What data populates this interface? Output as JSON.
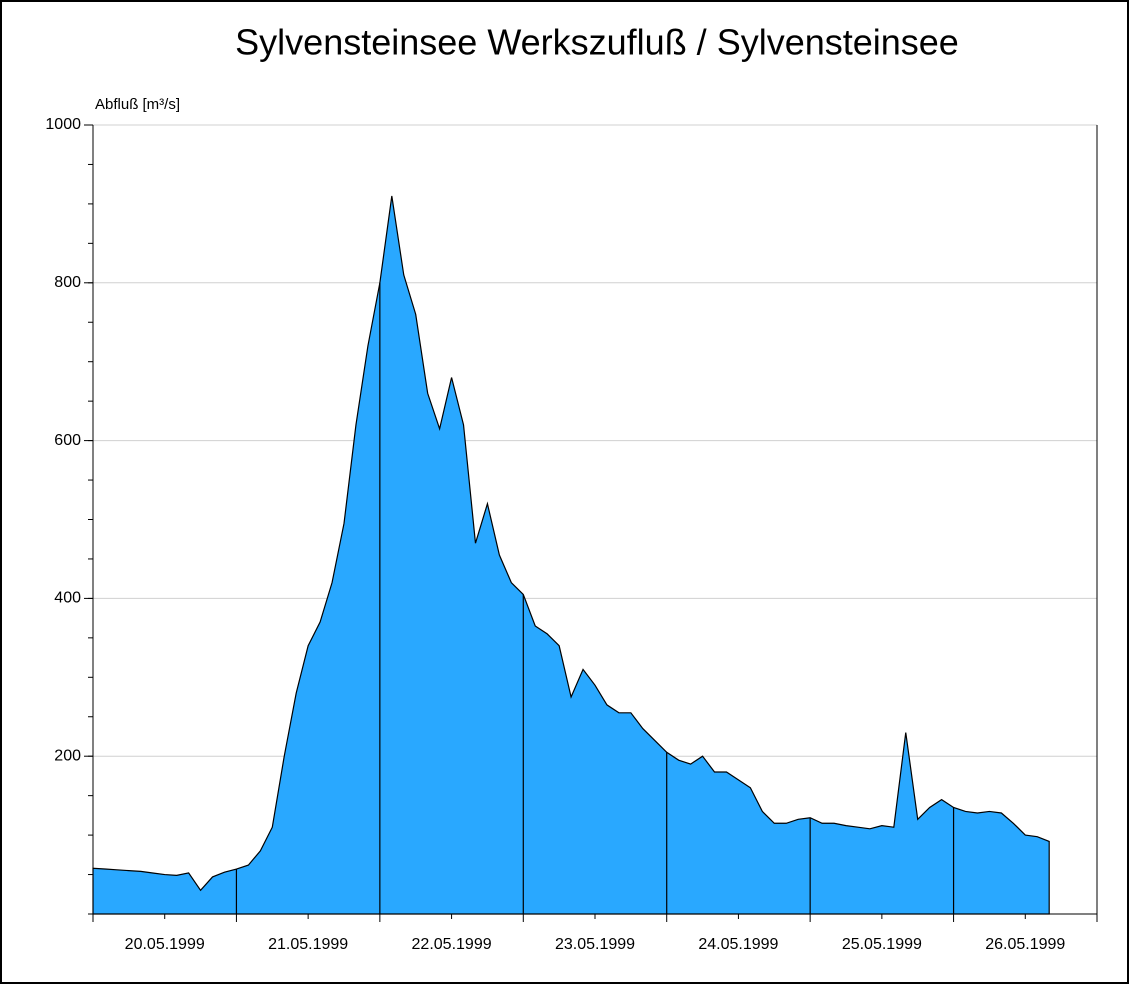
{
  "chart_data": {
    "type": "area",
    "title": "Sylvensteinsee Werkszufluß / Sylvensteinsee",
    "y_label": "Abfluß [m³/s]",
    "categories": [
      "20.05.1999",
      "21.05.1999",
      "22.05.1999",
      "23.05.1999",
      "24.05.1999",
      "25.05.1999",
      "26.05.1999"
    ],
    "values": [
      [
        58,
        57,
        56,
        55,
        54,
        52,
        50,
        49,
        52,
        30,
        47,
        53
      ],
      [
        57,
        62,
        80,
        110,
        200,
        280,
        340,
        370,
        420,
        495,
        620,
        720
      ],
      [
        800,
        910,
        810,
        760,
        660,
        615,
        680,
        620,
        470,
        520,
        455,
        420
      ],
      [
        405,
        365,
        355,
        340,
        275,
        310,
        290,
        265,
        255,
        255,
        235,
        220
      ],
      [
        205,
        195,
        190,
        200,
        180,
        180,
        170,
        160,
        130,
        115,
        115,
        120
      ],
      [
        122,
        115,
        115,
        112,
        110,
        108,
        112,
        110,
        230,
        120,
        135,
        145
      ],
      [
        135,
        130,
        128,
        130,
        128,
        115,
        100,
        98,
        92
      ]
    ],
    "color": "#29a8ff",
    "ylim": [
      0,
      1000
    ],
    "yticks": [
      200,
      400,
      600,
      800,
      1000
    ],
    "grid": true
  }
}
